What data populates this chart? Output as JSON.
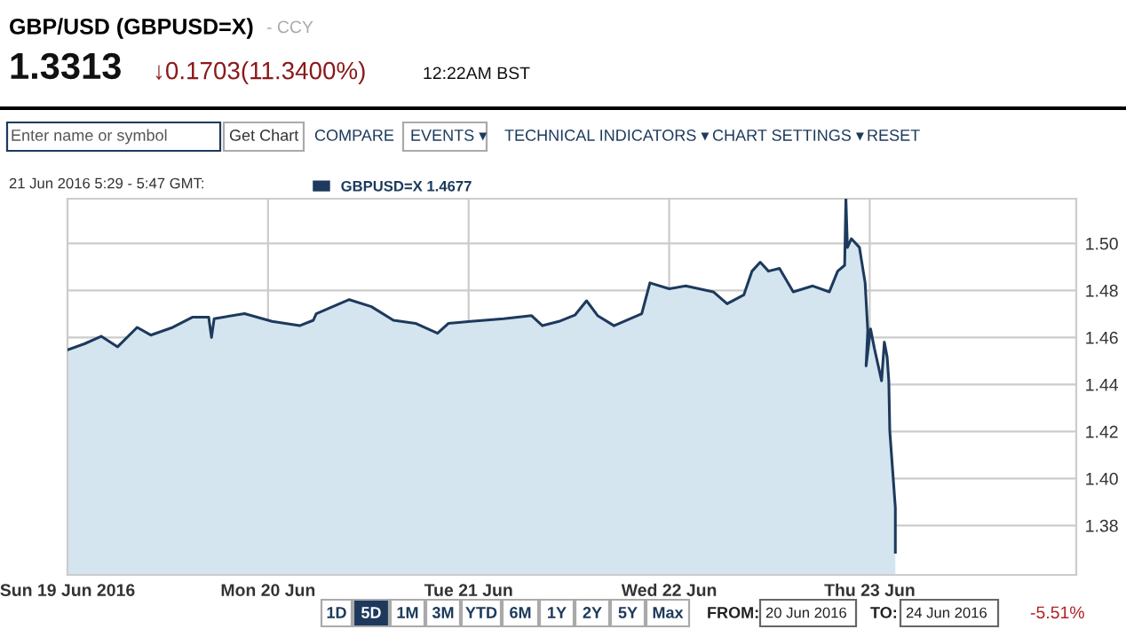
{
  "chart_data": {
    "type": "area",
    "title": "GBP/USD (GBPUSD=X)",
    "subtitle": "- CCY",
    "annotations": [
      "1.3313",
      "↓0.1703(11.3400%)",
      "12:22AM BST",
      "Enter name or symbol",
      "Get Chart",
      "COMPARE",
      "EVENTS ▾",
      "TECHNICAL INDICATORS ▾",
      "CHART SETTINGS ▾",
      "RESET",
      "21 Jun 2016 5:29 - 5:47 GMT:",
      "1D",
      "5D",
      "1M",
      "3M",
      "YTD",
      "6M",
      "1Y",
      "2Y",
      "5Y",
      "Max",
      "FROM:",
      "20 Jun 2016",
      "TO:",
      "24 Jun 2016",
      "-5.51%"
    ],
    "x": [
      "2016-06-19T00:00",
      "2016-06-19T02:02",
      "2016-06-19T04:02",
      "2016-06-19T06:00",
      "2016-06-19T08:20",
      "2016-06-19T09:58",
      "2016-06-19T12:36",
      "2016-06-19T14:56",
      "2016-06-19T16:54",
      "2016-06-19T17:14",
      "2016-06-19T17:33",
      "2016-06-19T21:11",
      "2016-06-20T00:29",
      "2016-06-20T03:47",
      "2016-06-20T05:25",
      "2016-06-20T05:46",
      "2016-06-20T09:43",
      "2016-06-20T12:22",
      "2016-06-20T15:00",
      "2016-06-20T17:38",
      "2016-06-20T20:17",
      "2016-06-20T21:36",
      "2016-06-21T00:14",
      "2016-06-21T04:12",
      "2016-06-21T07:31",
      "2016-06-21T08:50",
      "2016-06-21T10:48",
      "2016-06-21T12:43",
      "2016-06-21T14:07",
      "2016-06-21T15:26",
      "2016-06-21T17:24",
      "2016-06-21T20:43",
      "2016-06-21T21:42",
      "2016-06-22T00:00",
      "2016-06-22T01:59",
      "2016-06-22T05:17",
      "2016-06-22T06:56",
      "2016-06-22T08:56",
      "2016-06-22T09:55",
      "2016-06-22T10:54",
      "2016-06-22T11:53",
      "2016-06-22T13:12",
      "2016-06-22T14:51",
      "2016-06-22T17:11",
      "2016-06-22T19:10",
      "2016-06-22T20:10",
      "2016-06-22T21:00",
      "2016-06-22T21:09",
      "2016-06-22T21:20",
      "2016-06-22T21:48",
      "2016-06-22T22:46",
      "2016-06-22T23:27",
      "2016-06-22T23:46",
      "2016-06-22T23:34",
      "2016-06-23T00:06",
      "2016-06-23T00:33",
      "2016-06-23T01:25",
      "2016-06-23T01:45",
      "2016-06-23T02:05",
      "2016-06-23T02:17",
      "2016-06-23T02:24",
      "2016-06-23T03:04",
      "2016-06-23T03:04"
    ],
    "series": [
      {
        "name": "GBPUSD=X 1.4677",
        "color": "#1d3a5c",
        "values": [
          1.4547,
          1.4573,
          1.4605,
          1.456,
          1.4643,
          1.461,
          1.4643,
          1.4686,
          1.4686,
          1.46,
          1.468,
          1.4701,
          1.4668,
          1.465,
          1.4673,
          1.4701,
          1.4761,
          1.4731,
          1.4673,
          1.466,
          1.4618,
          1.466,
          1.4668,
          1.468,
          1.4693,
          1.465,
          1.4668,
          1.4695,
          1.4756,
          1.4693,
          1.465,
          1.4701,
          1.4832,
          1.4807,
          1.4819,
          1.4794,
          1.4743,
          1.4781,
          1.4882,
          1.492,
          1.4882,
          1.4894,
          1.4794,
          1.4819,
          1.4794,
          1.4882,
          1.4907,
          1.5189,
          1.4983,
          1.502,
          1.4983,
          1.4832,
          1.463,
          1.4479,
          1.4636,
          1.4555,
          1.4416,
          1.458,
          1.4517,
          1.4416,
          1.4203,
          1.3875,
          1.3686
        ]
      }
    ],
    "xlim": [
      "2016-06-19T00:00",
      "2016-06-24T00:43"
    ],
    "xticks": [
      {
        "value": "2016-06-19",
        "label": "Sun 19 Jun 2016"
      },
      {
        "value": "2016-06-20",
        "label": "Mon 20 Jun"
      },
      {
        "value": "2016-06-21",
        "label": "Tue 21 Jun"
      },
      {
        "value": "2016-06-22",
        "label": "Wed 22 Jun"
      },
      {
        "value": "2016-06-23",
        "label": "Thu 23 Jun"
      }
    ],
    "ylim": [
      1.359,
      1.519
    ],
    "yticks": [
      {
        "value": 1.38,
        "label": "1.38"
      },
      {
        "value": 1.4,
        "label": "1.40"
      },
      {
        "value": 1.42,
        "label": "1.42"
      },
      {
        "value": 1.44,
        "label": "1.44"
      },
      {
        "value": 1.46,
        "label": "1.46"
      },
      {
        "value": 1.48,
        "label": "1.48"
      },
      {
        "value": 1.5,
        "label": "1.50"
      }
    ],
    "grid": true,
    "legend": "top left"
  }
}
